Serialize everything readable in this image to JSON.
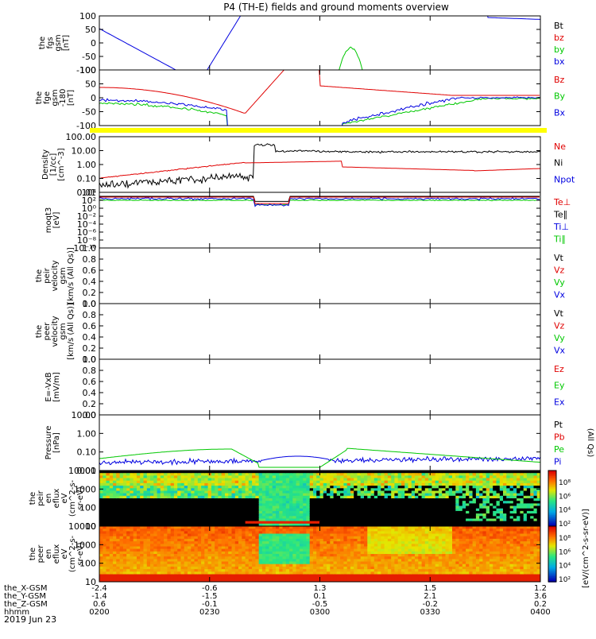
{
  "title": "P4 (TH-E) fields and ground moments overview",
  "date_label": "2019 Jun 23",
  "colors": {
    "black": "#000000",
    "red": "#e00000",
    "green": "#00c800",
    "blue": "#0000e0",
    "yellow": "#ffff00"
  },
  "chart_data": [
    {
      "type": "line",
      "ylabel": [
        "the",
        "fgs",
        "gsm",
        "[nT]"
      ],
      "yticks": [
        "100",
        "50",
        "0",
        "-50",
        "-100"
      ],
      "legend": [
        {
          "name": "Bt",
          "color": "black"
        },
        {
          "name": "bz",
          "color": "red"
        },
        {
          "name": "by",
          "color": "green"
        },
        {
          "name": "bx",
          "color": "blue"
        }
      ]
    },
    {
      "type": "line",
      "ylabel": [
        "the",
        "fge",
        "gsm",
        "-180",
        "[nT]"
      ],
      "yticks": [
        "100",
        "50",
        "0",
        "-50",
        "-100"
      ],
      "legend": [
        {
          "name": "Bz",
          "color": "red"
        },
        {
          "name": "By",
          "color": "green"
        },
        {
          "name": "Bx",
          "color": "blue"
        }
      ]
    },
    {
      "type": "line",
      "scale": "log",
      "ylabel": [
        "Density",
        "[1/cc]",
        "[cm^-3]"
      ],
      "yticks": [
        "100.00",
        "10.00",
        "1.00",
        "0.10",
        "0.01"
      ],
      "legend": [
        {
          "name": "Ne",
          "color": "red"
        },
        {
          "name": "Ni",
          "color": "black"
        },
        {
          "name": "Npot",
          "color": "blue"
        }
      ]
    },
    {
      "type": "line",
      "scale": "log",
      "ylabel": [
        "moqt3",
        "[eV]"
      ],
      "yticks": [
        "10⁴",
        "10²",
        "10⁰",
        "10⁻²",
        "10⁻⁴",
        "10⁻⁶",
        "10⁻⁸",
        "10⁻¹⁰"
      ],
      "legend": [
        {
          "name": "Te⊥",
          "color": "red"
        },
        {
          "name": "Te∥",
          "color": "black"
        },
        {
          "name": "Ti⊥",
          "color": "blue"
        },
        {
          "name": "Ti∥",
          "color": "green"
        }
      ]
    },
    {
      "type": "line",
      "ylabel": [
        "the",
        "peir",
        "velocity",
        "gsm",
        "[km/s (All Qs)]"
      ],
      "yticks": [
        "1.0",
        "0.8",
        "0.6",
        "0.4",
        "0.2",
        "0.0"
      ],
      "legend": [
        {
          "name": "Vt",
          "color": "black"
        },
        {
          "name": "Vz",
          "color": "red"
        },
        {
          "name": "Vy",
          "color": "green"
        },
        {
          "name": "Vx",
          "color": "blue"
        }
      ]
    },
    {
      "type": "line",
      "ylabel": [
        "the",
        "peer",
        "velocity",
        "gsm",
        "[km/s (All Qs)]"
      ],
      "yticks": [
        "1.0",
        "0.8",
        "0.6",
        "0.4",
        "0.2",
        "0.0"
      ],
      "legend": [
        {
          "name": "Vt",
          "color": "black"
        },
        {
          "name": "Vz",
          "color": "red"
        },
        {
          "name": "Vy",
          "color": "green"
        },
        {
          "name": "Vx",
          "color": "blue"
        }
      ]
    },
    {
      "type": "line",
      "ylabel": [
        "E=-VxB",
        "[mV/m]"
      ],
      "yticks": [
        "1.0",
        "0.8",
        "0.6",
        "0.4",
        "0.2",
        "0.0"
      ],
      "legend": [
        {
          "name": "Ez",
          "color": "red"
        },
        {
          "name": "Ey",
          "color": "green"
        },
        {
          "name": "Ex",
          "color": "blue"
        }
      ]
    },
    {
      "type": "line",
      "scale": "log",
      "ylabel": [
        "Pressure",
        "[nPa]"
      ],
      "yticks": [
        "10.00",
        "1.00",
        "0.10",
        "0.01"
      ],
      "legend": [
        {
          "name": "Pt",
          "color": "black"
        },
        {
          "name": "Pb",
          "color": "red"
        },
        {
          "name": "Pe",
          "color": "green"
        },
        {
          "name": "Pi",
          "color": "blue"
        }
      ],
      "right_label": "(All Qs)"
    },
    {
      "type": "heatmap",
      "ylabel": [
        "the",
        "peir",
        "en",
        "eflux",
        "eV",
        "(cm^2-s-",
        "sr-eV)"
      ],
      "yticks": [
        "10000",
        "1000",
        "100",
        "10"
      ],
      "colorbar_ticks": [
        "10⁸",
        "10⁶",
        "10⁴",
        "10²"
      ]
    },
    {
      "type": "heatmap",
      "ylabel": [
        "the",
        "peer",
        "en",
        "eflux",
        "eV",
        "(cm^2-s-",
        "sr-eV)"
      ],
      "yticks": [
        "10000",
        "1000",
        "100",
        "10"
      ],
      "colorbar_ticks": [
        "10⁸",
        "10⁶",
        "10⁴",
        "10²"
      ],
      "colorbar_label": "[eV/(cm^2-s-sr-eV)]"
    }
  ],
  "x_axis": {
    "row_labels": [
      "the_X-GSM",
      "the_Y-GSM",
      "the_Z-GSM",
      "hhmm"
    ],
    "columns": [
      [
        "-2.4",
        "-1.4",
        "0.6",
        "0200"
      ],
      [
        "-0.6",
        "-1.5",
        "-0.1",
        "0230"
      ],
      [
        "1.3",
        "0.1",
        "-0.5",
        "0300"
      ],
      [
        "1.5",
        "2.1",
        "-0.2",
        "0330"
      ],
      [
        "1.2",
        "3.6",
        "0.2",
        "0400"
      ]
    ]
  }
}
